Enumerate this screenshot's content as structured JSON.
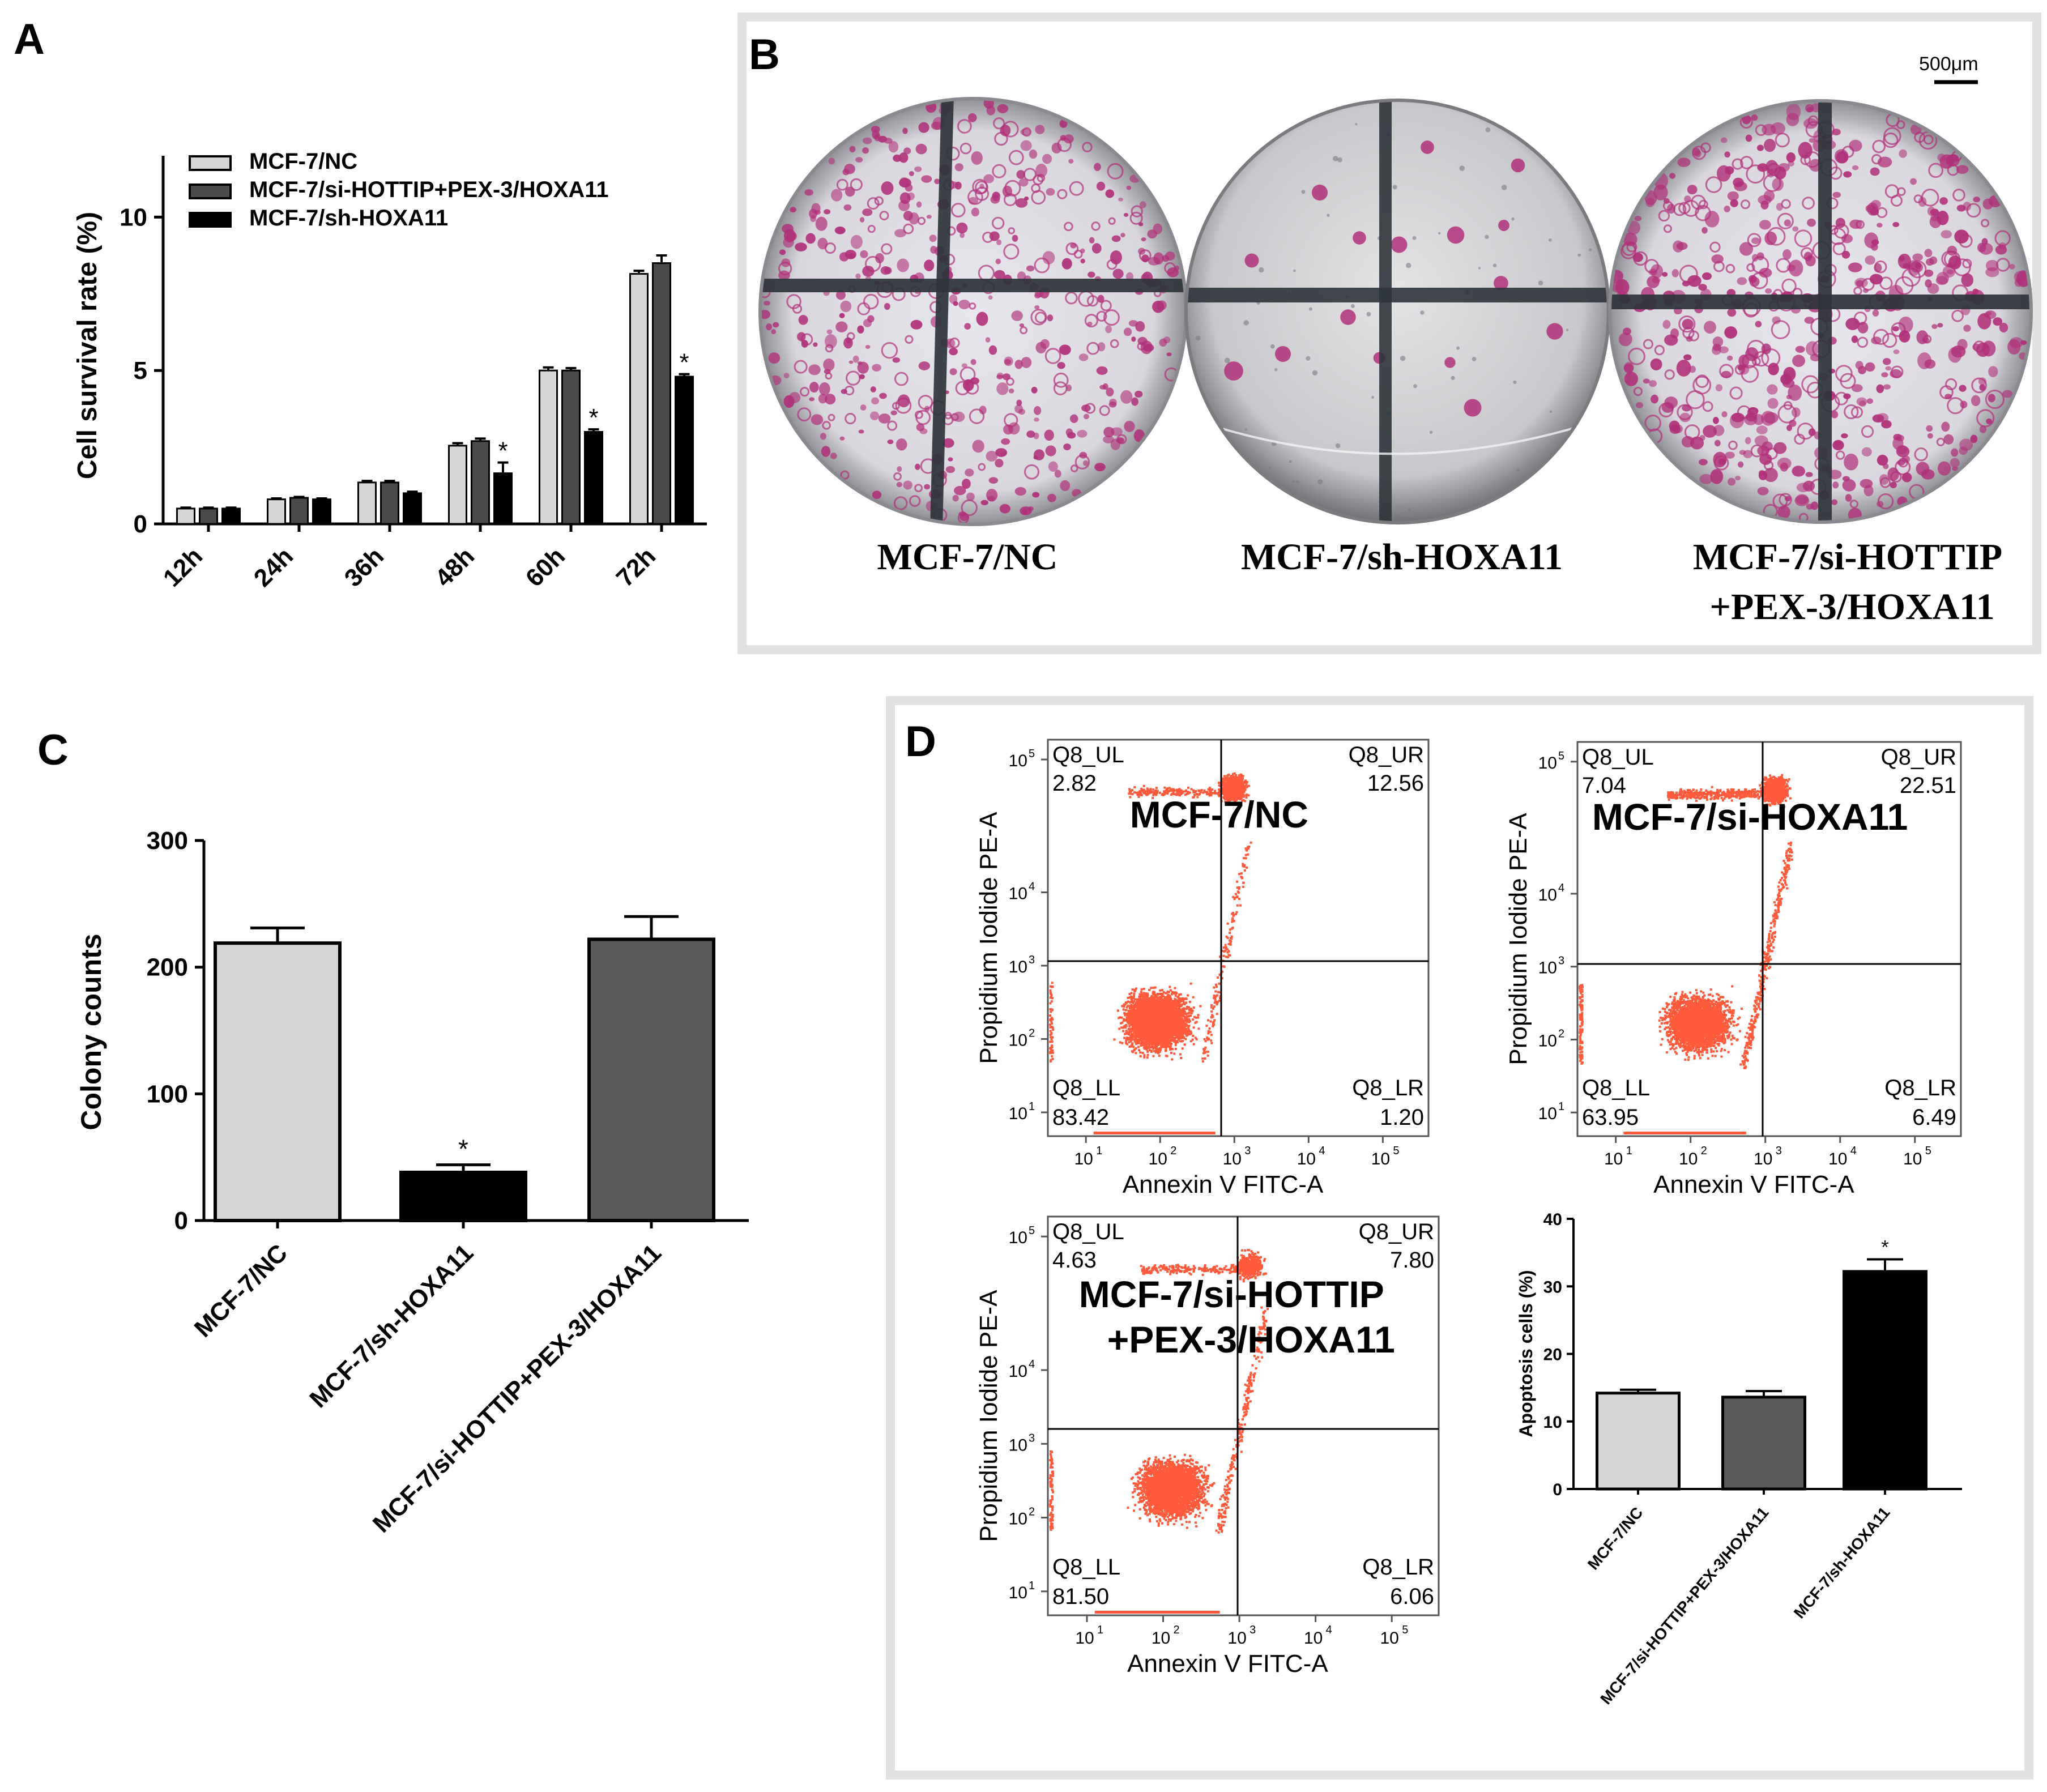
{
  "panels": {
    "A": {
      "letter": "A",
      "chart_data": {
        "type": "bar",
        "ylabel": "Cell survival rate (%)",
        "xlabel": "",
        "ylim": [
          0,
          12
        ],
        "yticks": [
          "0",
          "5",
          "10"
        ],
        "ytick_values": [
          0,
          5,
          10
        ],
        "categories": [
          "12h",
          "24h",
          "36h",
          "48h",
          "60h",
          "72h"
        ],
        "legend_position": "top-left",
        "series": [
          {
            "name": "MCF-7/NC",
            "color": "#d6d6d6",
            "values": [
              0.5,
              0.8,
              1.35,
              2.55,
              5.0,
              8.15
            ],
            "errors": [
              0.03,
              0.03,
              0.05,
              0.08,
              0.1,
              0.1
            ]
          },
          {
            "name": "MCF-7/si-HOTTIP+PEX-3/HOXA11",
            "color": "#4a4a4a",
            "values": [
              0.5,
              0.85,
              1.35,
              2.7,
              5.0,
              8.5
            ],
            "errors": [
              0.03,
              0.03,
              0.05,
              0.08,
              0.08,
              0.25
            ]
          },
          {
            "name": "MCF-7/sh-HOXA11",
            "color": "#000000",
            "values": [
              0.5,
              0.8,
              1.0,
              1.65,
              3.0,
              4.8
            ],
            "errors": [
              0.03,
              0.03,
              0.05,
              0.35,
              0.08,
              0.08
            ]
          }
        ],
        "annotations": [
          {
            "text": "*",
            "category": "48h",
            "series": 2
          },
          {
            "text": "*",
            "category": "60h",
            "series": 2
          },
          {
            "text": "*",
            "category": "72h",
            "series": 2
          }
        ]
      }
    },
    "B": {
      "letter": "B",
      "scale_bar": "500μm",
      "labels": [
        "MCF-7/NC",
        "MCF-7/sh-HOXA11",
        "MCF-7/si-HOTTIP",
        "+PEX-3/HOXA11"
      ]
    },
    "C": {
      "letter": "C",
      "chart_data": {
        "type": "bar",
        "ylabel": "Colony counts",
        "xlabel": "",
        "ylim": [
          0,
          300
        ],
        "yticks": [
          "0",
          "100",
          "200",
          "300"
        ],
        "ytick_values": [
          0,
          100,
          200,
          300
        ],
        "categories": [
          "MCF-7/NC",
          "MCF-7/sh-HOXA11",
          "MCF-7/si-HOTTIP+PEX-3/HOXA11"
        ],
        "values": [
          219,
          38,
          222
        ],
        "errors": [
          12,
          6,
          18
        ],
        "colors": [
          "#d6d6d6",
          "#000000",
          "#5a5a5a"
        ],
        "annotations": [
          {
            "text": "*",
            "category": "MCF-7/sh-HOXA11"
          }
        ]
      }
    },
    "D": {
      "letter": "D",
      "flow_plots": [
        {
          "title": "MCF-7/NC",
          "ylabel": "Propidium Iodide PE-A",
          "xlabel": "Annexin V FITC-A",
          "gates": {
            "UL": "Q8_UL",
            "UR": "Q8_UR",
            "LL": "Q8_LL",
            "LR": "Q8_LR"
          },
          "values": {
            "UL": "2.82",
            "UR": "12.56",
            "LL": "83.42",
            "LR": "1.20"
          }
        },
        {
          "title": "MCF-7/si-HOXA11",
          "ylabel": "Propidium Iodide PE-A",
          "xlabel": "Annexin V FITC-A",
          "gates": {
            "UL": "Q8_UL",
            "UR": "Q8_UR",
            "LL": "Q8_LL",
            "LR": "Q8_LR"
          },
          "values": {
            "UL": "7.04",
            "UR": "22.51",
            "LL": "63.95",
            "LR": "6.49"
          }
        },
        {
          "title_lines": [
            "MCF-7/si-HOTTIP",
            "+PEX-3/HOXA11"
          ],
          "ylabel": "Propidium Iodide PE-A",
          "xlabel": "Annexin V FITC-A",
          "gates": {
            "UL": "Q8_UL",
            "UR": "Q8_UR",
            "LL": "Q8_LL",
            "LR": "Q8_LR"
          },
          "values": {
            "UL": "4.63",
            "UR": "7.80",
            "LL": "81.50",
            "LR": "6.06"
          }
        }
      ],
      "flow_axis_ticks": [
        "10",
        "10",
        "10",
        "10",
        "10"
      ],
      "flow_axis_exponents": [
        "1",
        "2",
        "3",
        "4",
        "5"
      ],
      "chart_data": {
        "type": "bar",
        "ylabel": "Apoptosis cells (%)",
        "xlabel": "",
        "ylim": [
          0,
          40
        ],
        "yticks": [
          "0",
          "10",
          "20",
          "30",
          "40"
        ],
        "ytick_values": [
          0,
          10,
          20,
          30,
          40
        ],
        "categories": [
          "MCF-7/NC",
          "MCF-7/si-HOTTIP+PEX-3/HOXA11",
          "MCF-7/sh-HOXA11"
        ],
        "values": [
          14.2,
          13.6,
          32.2
        ],
        "errors": [
          0.5,
          0.9,
          1.8
        ],
        "colors": [
          "#d6d6d6",
          "#5a5a5a",
          "#000000"
        ],
        "annotations": [
          {
            "text": "*",
            "category": "MCF-7/sh-HOXA11"
          }
        ]
      }
    }
  },
  "colors": {
    "panel_frame": "#e2e2e2",
    "dots": "#ff5a3c",
    "stain": "#b0307a",
    "plate": "#c9c9ce"
  }
}
